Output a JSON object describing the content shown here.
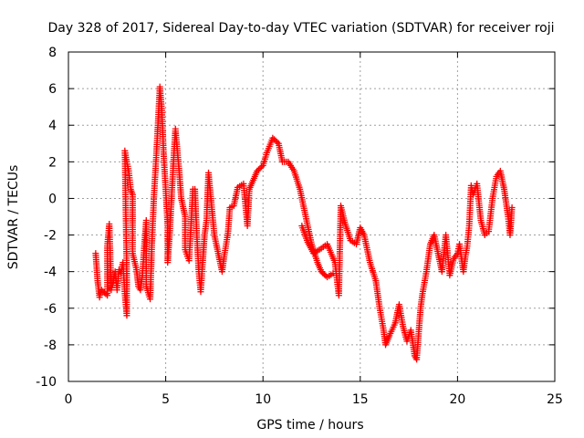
{
  "chart_data": {
    "type": "scatter",
    "title": "Day 328 of 2017, Sidereal Day-to-day VTEC variation (SDTVAR) for receiver roji",
    "xlabel": "GPS time / hours",
    "ylabel": "SDTVAR / TECUs",
    "xlim": [
      0,
      25
    ],
    "ylim": [
      -10,
      8
    ],
    "xticks": [
      0,
      5,
      10,
      15,
      20,
      25
    ],
    "yticks": [
      -10,
      -8,
      -6,
      -4,
      -2,
      0,
      2,
      4,
      6,
      8
    ],
    "grid": true,
    "marker": "+",
    "color": "#ff0000",
    "series": [
      {
        "name": "SDTVAR",
        "points": [
          [
            1.4,
            -3.0
          ],
          [
            1.5,
            -4.5
          ],
          [
            1.6,
            -5.4
          ],
          [
            1.7,
            -5.0
          ],
          [
            2.0,
            -5.3
          ],
          [
            2.0,
            -2.6
          ],
          [
            2.1,
            -1.4
          ],
          [
            2.2,
            -5.0
          ],
          [
            2.3,
            -4.6
          ],
          [
            2.4,
            -4.0
          ],
          [
            2.5,
            -5.0
          ],
          [
            2.6,
            -3.9
          ],
          [
            2.7,
            -4.1
          ],
          [
            2.8,
            -3.5
          ],
          [
            2.9,
            -5.2
          ],
          [
            3.0,
            -6.4
          ],
          [
            3.0,
            -4.1
          ],
          [
            2.9,
            2.6
          ],
          [
            3.0,
            2.0
          ],
          [
            3.1,
            1.5
          ],
          [
            3.2,
            0.5
          ],
          [
            3.3,
            0.2
          ],
          [
            3.3,
            -3.0
          ],
          [
            3.5,
            -3.9
          ],
          [
            3.6,
            -4.8
          ],
          [
            3.7,
            -5.0
          ],
          [
            3.8,
            -4.2
          ],
          [
            3.9,
            -2.6
          ],
          [
            4.0,
            -1.2
          ],
          [
            4.0,
            -4.8
          ],
          [
            4.2,
            -5.5
          ],
          [
            4.3,
            -2.2
          ],
          [
            4.4,
            0.2
          ],
          [
            4.5,
            2.0
          ],
          [
            4.6,
            4.0
          ],
          [
            4.7,
            6.1
          ],
          [
            4.8,
            4.8
          ],
          [
            4.9,
            2.3
          ],
          [
            5.0,
            0.5
          ],
          [
            5.1,
            -1.5
          ],
          [
            5.1,
            -3.5
          ],
          [
            5.2,
            -2.0
          ],
          [
            5.3,
            0.0
          ],
          [
            5.4,
            2.0
          ],
          [
            5.5,
            3.8
          ],
          [
            5.6,
            2.6
          ],
          [
            5.7,
            1.4
          ],
          [
            5.8,
            0.0
          ],
          [
            6.0,
            -1.0
          ],
          [
            6.0,
            -2.8
          ],
          [
            6.2,
            -3.4
          ],
          [
            6.3,
            -1.5
          ],
          [
            6.4,
            0.5
          ],
          [
            6.5,
            0.5
          ],
          [
            6.6,
            -2.0
          ],
          [
            6.7,
            -4.0
          ],
          [
            6.8,
            -5.1
          ],
          [
            6.9,
            -3.5
          ],
          [
            7.0,
            -2.0
          ],
          [
            7.1,
            -1.2
          ],
          [
            7.2,
            1.4
          ],
          [
            7.5,
            -2.0
          ],
          [
            7.7,
            -3.0
          ],
          [
            7.9,
            -4.0
          ],
          [
            8.0,
            -3.2
          ],
          [
            8.2,
            -1.9
          ],
          [
            8.3,
            -0.5
          ],
          [
            8.5,
            -0.4
          ],
          [
            8.7,
            0.6
          ],
          [
            9.0,
            0.8
          ],
          [
            9.2,
            -1.5
          ],
          [
            9.3,
            0.5
          ],
          [
            9.5,
            1.0
          ],
          [
            9.7,
            1.5
          ],
          [
            10.0,
            1.8
          ],
          [
            10.2,
            2.5
          ],
          [
            10.5,
            3.3
          ],
          [
            10.8,
            3.0
          ],
          [
            11.0,
            2.0
          ],
          [
            11.3,
            2.0
          ],
          [
            11.6,
            1.5
          ],
          [
            11.9,
            0.5
          ],
          [
            12.2,
            -1.0
          ],
          [
            12.5,
            -2.5
          ],
          [
            12.8,
            -3.5
          ],
          [
            13.0,
            -4.0
          ],
          [
            13.3,
            -4.3
          ],
          [
            13.6,
            -4.1
          ],
          [
            12.0,
            -1.5
          ],
          [
            12.3,
            -2.4
          ],
          [
            12.6,
            -3.0
          ],
          [
            12.9,
            -2.8
          ],
          [
            13.3,
            -2.5
          ],
          [
            13.7,
            -3.5
          ],
          [
            13.9,
            -5.3
          ],
          [
            14.0,
            -0.4
          ],
          [
            14.2,
            -1.3
          ],
          [
            14.5,
            -2.3
          ],
          [
            14.8,
            -2.5
          ],
          [
            15.0,
            -1.6
          ],
          [
            15.2,
            -2.0
          ],
          [
            15.5,
            -3.5
          ],
          [
            15.8,
            -4.5
          ],
          [
            16.0,
            -6.0
          ],
          [
            16.2,
            -7.2
          ],
          [
            16.3,
            -8.0
          ],
          [
            16.5,
            -7.5
          ],
          [
            16.8,
            -6.8
          ],
          [
            17.0,
            -5.8
          ],
          [
            17.2,
            -7.0
          ],
          [
            17.4,
            -7.8
          ],
          [
            17.6,
            -7.2
          ],
          [
            17.8,
            -8.6
          ],
          [
            17.9,
            -8.8
          ],
          [
            18.0,
            -7.4
          ],
          [
            18.1,
            -6.0
          ],
          [
            18.2,
            -5.2
          ],
          [
            18.4,
            -4.0
          ],
          [
            18.6,
            -2.5
          ],
          [
            18.8,
            -2.0
          ],
          [
            19.0,
            -3.0
          ],
          [
            19.2,
            -4.0
          ],
          [
            19.4,
            -2.0
          ],
          [
            19.6,
            -4.2
          ],
          [
            19.8,
            -3.3
          ],
          [
            20.0,
            -3.0
          ],
          [
            20.1,
            -2.5
          ],
          [
            20.3,
            -4.0
          ],
          [
            20.4,
            -3.2
          ],
          [
            20.5,
            -2.6
          ],
          [
            20.6,
            -1.5
          ],
          [
            20.7,
            0.7
          ],
          [
            20.8,
            0.2
          ],
          [
            21.0,
            0.8
          ],
          [
            21.2,
            -1.2
          ],
          [
            21.4,
            -2.0
          ],
          [
            21.6,
            -1.8
          ],
          [
            21.8,
            0.0
          ],
          [
            22.0,
            1.2
          ],
          [
            22.2,
            1.5
          ],
          [
            22.4,
            0.5
          ],
          [
            22.6,
            -1.0
          ],
          [
            22.7,
            -2.0
          ],
          [
            22.8,
            -0.5
          ]
        ]
      }
    ]
  }
}
